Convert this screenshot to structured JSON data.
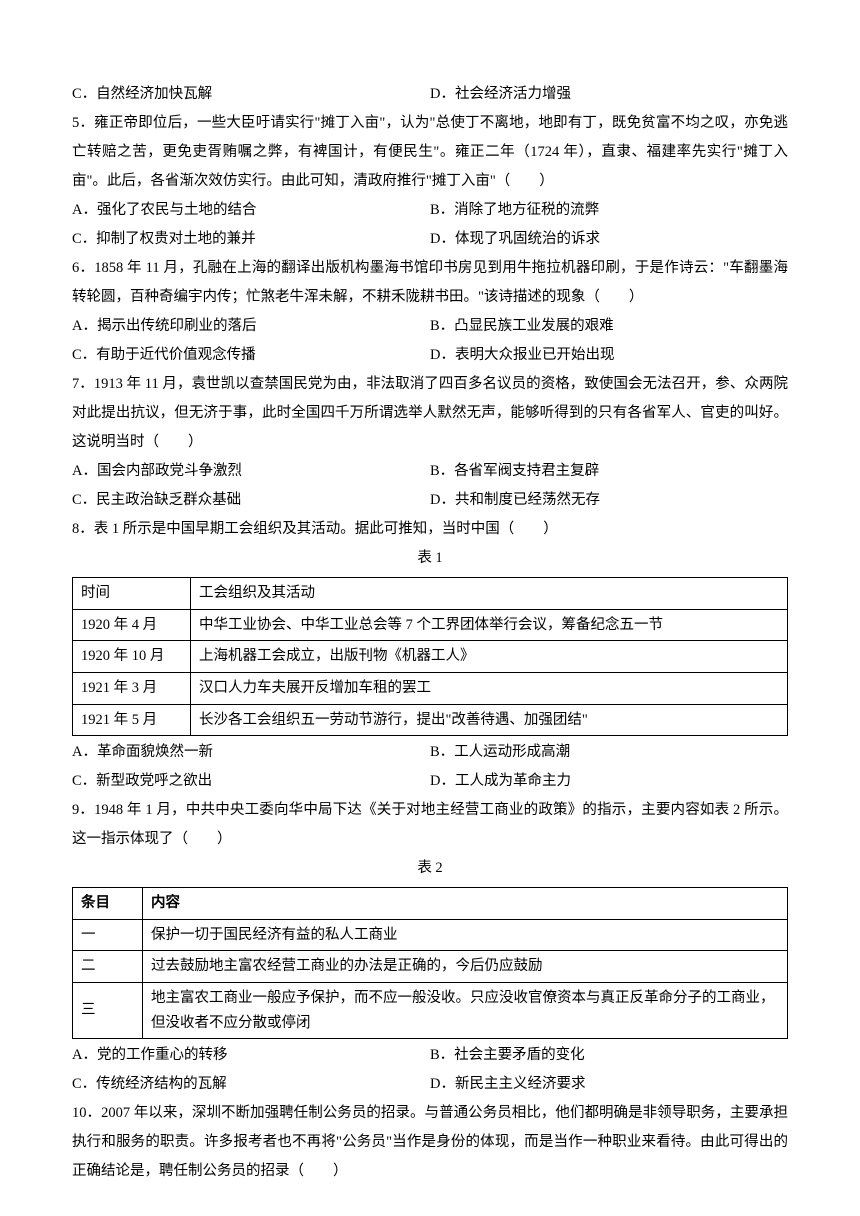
{
  "q4_options": {
    "c": "C．自然经济加快瓦解",
    "d": "D．社会经济活力增强"
  },
  "q5": {
    "stem": "5．雍正帝即位后，一些大臣吁请实行\"摊丁入亩\"，认为\"总使丁不离地，地即有丁，既免贫富不均之叹，亦免逃亡转赔之苦，更免吏胥贿嘱之弊，有裨国计，有便民生\"。雍正二年（1724 年），直隶、福建率先实行\"摊丁入亩\"。此后，各省渐次效仿实行。由此可知，清政府推行\"摊丁入亩\"（　　）",
    "a": "A．强化了农民与土地的结合",
    "b": "B．消除了地方征税的流弊",
    "c": "C．抑制了权贵对土地的兼并",
    "d": "D．体现了巩固统治的诉求"
  },
  "q6": {
    "stem": "6．1858 年 11 月，孔融在上海的翻译出版机构墨海书馆印书房见到用牛拖拉机器印刷，于是作诗云：\"车翻墨海转轮圆，百种奇编宇内传；忙煞老牛浑未解，不耕禾陇耕书田。\"该诗描述的现象（　　）",
    "a": "A．揭示出传统印刷业的落后",
    "b": "B．凸显民族工业发展的艰难",
    "c": "C．有助于近代价值观念传播",
    "d": "D．表明大众报业已开始出现"
  },
  "q7": {
    "stem": "7．1913 年 11 月，袁世凯以查禁国民党为由，非法取消了四百多名议员的资格，致使国会无法召开，参、众两院对此提出抗议，但无济于事，此时全国四千万所谓选举人默然无声，能够听得到的只有各省军人、官吏的叫好。这说明当时（　　）",
    "a": "A．国会内部政党斗争激烈",
    "b": "B．各省军阀支持君主复辟",
    "c": "C．民主政治缺乏群众基础",
    "d": "D．共和制度已经荡然无存"
  },
  "q8": {
    "stem": "8．表 1 所示是中国早期工会组织及其活动。据此可推知，当时中国（　　）",
    "caption": "表 1",
    "headers": {
      "c1": "时间",
      "c2": "工会组织及其活动"
    },
    "rows": [
      {
        "c1": "1920 年 4 月",
        "c2": "中华工业协会、中华工业总会等 7 个工界团体举行会议，筹备纪念五一节"
      },
      {
        "c1": "1920 年 10 月",
        "c2": "上海机器工会成立，出版刊物《机器工人》"
      },
      {
        "c1": "1921 年 3 月",
        "c2": "汉口人力车夫展开反增加车租的罢工"
      },
      {
        "c1": "1921 年 5 月",
        "c2": "长沙各工会组织五一劳动节游行，提出\"改善待遇、加强团结\""
      }
    ],
    "a": "A．革命面貌焕然一新",
    "b": "B．工人运动形成高潮",
    "c": "C．新型政党呼之欲出",
    "d": "D．工人成为革命主力"
  },
  "q9": {
    "stem": "9．1948 年 1 月，中共中央工委向华中局下达《关于对地主经营工商业的政策》的指示，主要内容如表 2 所示。这一指示体现了（　　）",
    "caption": "表 2",
    "headers": {
      "c1": "条目",
      "c2": "内容"
    },
    "rows": [
      {
        "c1": "一",
        "c2": "保护一切于国民经济有益的私人工商业"
      },
      {
        "c1": "二",
        "c2": "过去鼓励地主富农经营工商业的办法是正确的，今后仍应鼓励"
      },
      {
        "c1": "三",
        "c2": "地主富农工商业一般应予保护，而不应一般没收。只应没收官僚资本与真正反革命分子的工商业，但没收者不应分散或停闭"
      }
    ],
    "a": "A．党的工作重心的转移",
    "b": "B．社会主要矛盾的变化",
    "c": "C．传统经济结构的瓦解",
    "d": "D．新民主主义经济要求"
  },
  "q10": {
    "stem": "10．2007 年以来，深圳不断加强聘任制公务员的招录。与普通公务员相比，他们都明确是非领导职务，主要承担执行和服务的职责。许多报考者也不再将\"公务员\"当作是身份的体现，而是当作一种职业来看待。由此可得出的正确结论是，聘任制公务员的招录（　　）"
  }
}
